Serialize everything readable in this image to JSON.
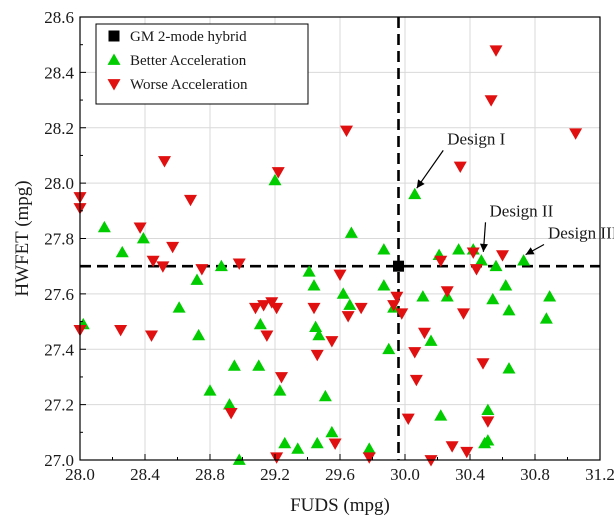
{
  "chart_data": {
    "type": "scatter",
    "xlabel": "FUDS (mpg)",
    "ylabel": "HWFET (mpg)",
    "xlim": [
      28.0,
      31.2
    ],
    "ylim": [
      27.0,
      28.6
    ],
    "xticks": [
      "28.0",
      "28.4",
      "28.8",
      "29.2",
      "29.6",
      "30.0",
      "30.4",
      "30.8",
      "31.2"
    ],
    "yticks": [
      "27.0",
      "27.2",
      "27.4",
      "27.6",
      "27.8",
      "28.0",
      "28.2",
      "28.4",
      "28.6"
    ],
    "grid": true,
    "legend_position": "top-left",
    "reference_lines": {
      "x": 29.96,
      "y": 27.7
    },
    "series": [
      {
        "name": "GM 2-mode hybrid",
        "marker": "square",
        "color": "#000000",
        "points": [
          [
            29.96,
            27.7
          ]
        ]
      },
      {
        "name": "Better Acceleration",
        "marker": "triangle-up",
        "color": "#00cc00",
        "points": [
          [
            28.02,
            27.49
          ],
          [
            28.15,
            27.84
          ],
          [
            28.26,
            27.75
          ],
          [
            28.39,
            27.8
          ],
          [
            28.61,
            27.55
          ],
          [
            28.72,
            27.65
          ],
          [
            28.73,
            27.45
          ],
          [
            28.8,
            27.25
          ],
          [
            28.87,
            27.7
          ],
          [
            28.92,
            27.2
          ],
          [
            28.95,
            27.34
          ],
          [
            28.98,
            27.0
          ],
          [
            29.1,
            27.34
          ],
          [
            29.11,
            27.49
          ],
          [
            29.2,
            28.01
          ],
          [
            29.23,
            27.25
          ],
          [
            29.26,
            27.06
          ],
          [
            29.34,
            27.04
          ],
          [
            29.41,
            27.68
          ],
          [
            29.44,
            27.63
          ],
          [
            29.45,
            27.48
          ],
          [
            29.46,
            27.06
          ],
          [
            29.47,
            27.45
          ],
          [
            29.51,
            27.23
          ],
          [
            29.55,
            27.1
          ],
          [
            29.62,
            27.6
          ],
          [
            29.66,
            27.56
          ],
          [
            29.67,
            27.82
          ],
          [
            29.78,
            27.04
          ],
          [
            29.87,
            27.76
          ],
          [
            29.87,
            27.63
          ],
          [
            29.9,
            27.4
          ],
          [
            29.93,
            27.55
          ],
          [
            30.06,
            27.96
          ],
          [
            30.11,
            27.59
          ],
          [
            30.16,
            27.43
          ],
          [
            30.21,
            27.74
          ],
          [
            30.22,
            27.16
          ],
          [
            30.26,
            27.59
          ],
          [
            30.33,
            27.76
          ],
          [
            30.42,
            27.76
          ],
          [
            30.47,
            27.72
          ],
          [
            30.49,
            27.06
          ],
          [
            30.51,
            27.18
          ],
          [
            30.51,
            27.07
          ],
          [
            30.54,
            27.58
          ],
          [
            30.56,
            27.7
          ],
          [
            30.62,
            27.63
          ],
          [
            30.64,
            27.54
          ],
          [
            30.64,
            27.33
          ],
          [
            30.73,
            27.72
          ],
          [
            30.87,
            27.51
          ],
          [
            30.89,
            27.59
          ]
        ]
      },
      {
        "name": "Worse Acceleration",
        "marker": "triangle-down",
        "color": "#e01010",
        "points": [
          [
            28.0,
            27.95
          ],
          [
            28.0,
            27.91
          ],
          [
            28.0,
            27.47
          ],
          [
            28.25,
            27.47
          ],
          [
            28.37,
            27.84
          ],
          [
            28.44,
            27.45
          ],
          [
            28.45,
            27.72
          ],
          [
            28.51,
            27.7
          ],
          [
            28.52,
            28.08
          ],
          [
            28.57,
            27.77
          ],
          [
            28.68,
            27.94
          ],
          [
            28.75,
            27.69
          ],
          [
            28.93,
            27.17
          ],
          [
            28.98,
            27.71
          ],
          [
            29.08,
            27.55
          ],
          [
            29.13,
            27.56
          ],
          [
            29.15,
            27.45
          ],
          [
            29.18,
            27.57
          ],
          [
            29.21,
            27.01
          ],
          [
            29.21,
            27.55
          ],
          [
            29.22,
            28.04
          ],
          [
            29.24,
            27.3
          ],
          [
            29.44,
            27.55
          ],
          [
            29.46,
            27.38
          ],
          [
            29.55,
            27.43
          ],
          [
            29.57,
            27.06
          ],
          [
            29.6,
            27.67
          ],
          [
            29.64,
            28.19
          ],
          [
            29.65,
            27.52
          ],
          [
            29.73,
            27.55
          ],
          [
            29.78,
            27.01
          ],
          [
            29.93,
            27.56
          ],
          [
            29.95,
            27.59
          ],
          [
            29.98,
            27.53
          ],
          [
            30.02,
            27.15
          ],
          [
            30.06,
            27.39
          ],
          [
            30.07,
            27.29
          ],
          [
            30.12,
            27.46
          ],
          [
            30.16,
            27.0
          ],
          [
            30.22,
            27.72
          ],
          [
            30.26,
            27.61
          ],
          [
            30.29,
            27.05
          ],
          [
            30.34,
            28.06
          ],
          [
            30.36,
            27.53
          ],
          [
            30.38,
            27.03
          ],
          [
            30.42,
            27.75
          ],
          [
            30.44,
            27.69
          ],
          [
            30.48,
            27.35
          ],
          [
            30.51,
            27.14
          ],
          [
            30.53,
            28.3
          ],
          [
            30.56,
            28.48
          ],
          [
            30.6,
            27.74
          ],
          [
            31.05,
            28.18
          ]
        ]
      }
    ],
    "annotations": [
      {
        "text": "Design I",
        "point": [
          30.06,
          27.96
        ],
        "label_at": [
          30.26,
          28.14
        ]
      },
      {
        "text": "Design II",
        "point": [
          30.47,
          27.73
        ],
        "label_at": [
          30.52,
          27.88
        ]
      },
      {
        "text": "Design III",
        "point": [
          30.73,
          27.72
        ],
        "label_at": [
          30.88,
          27.8
        ]
      }
    ]
  }
}
